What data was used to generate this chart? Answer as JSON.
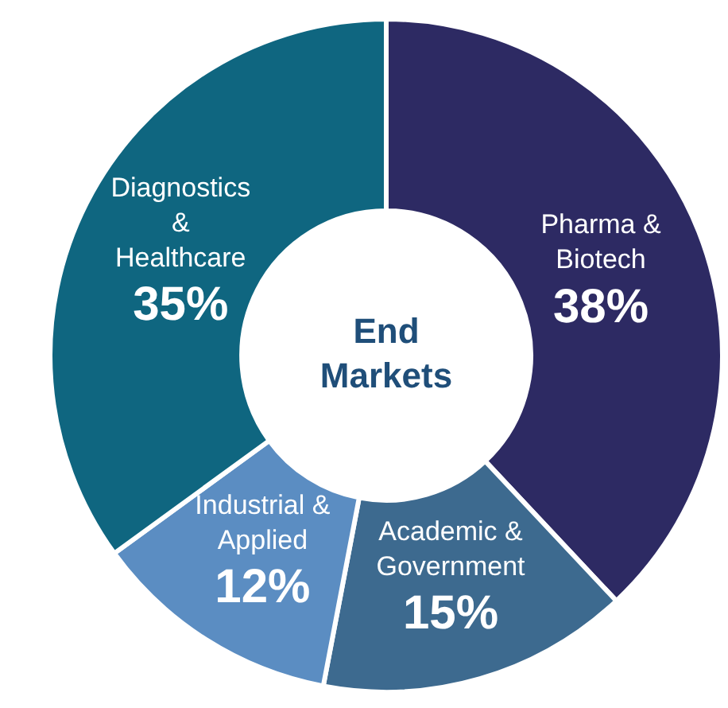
{
  "chart_data": {
    "type": "donut",
    "title": "End Markets",
    "categories": [
      "Pharma & Biotech",
      "Academic & Government",
      "Industrial & Applied",
      "Diagnostics & Healthcare"
    ],
    "values": [
      38,
      15,
      12,
      35
    ],
    "value_labels": [
      "38%",
      "15%",
      "12%",
      "35%"
    ],
    "colors": [
      "#2d2a63",
      "#3d6a8f",
      "#5b8dc2",
      "#0f6680"
    ],
    "legend": false
  }
}
